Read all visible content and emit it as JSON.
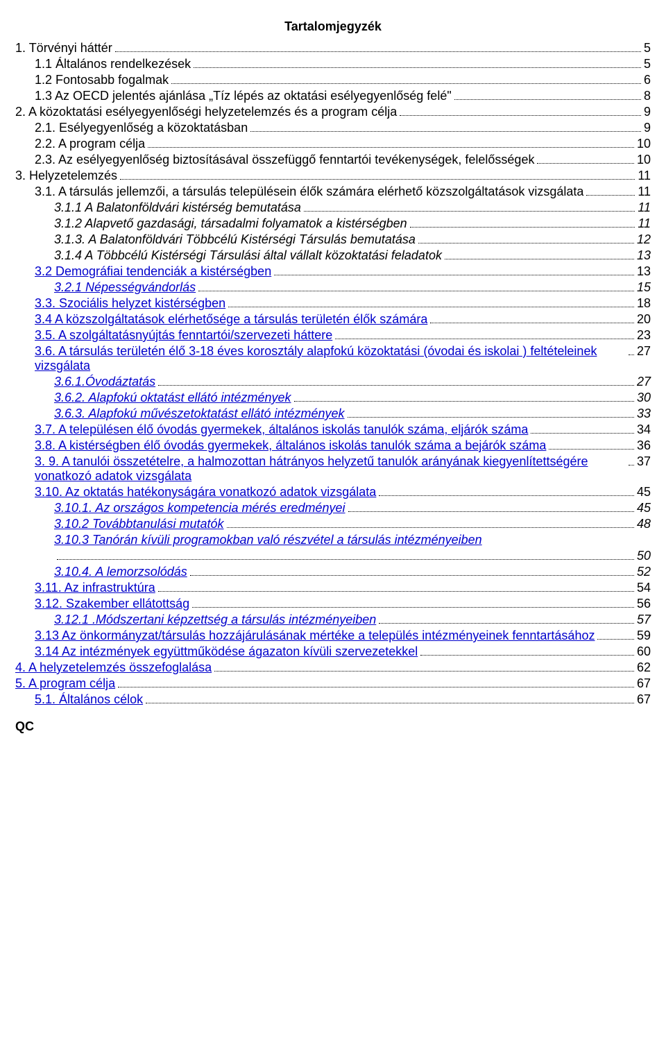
{
  "title": "Tartalomjegyzék",
  "footer": "QC",
  "colors": {
    "link": "#0000cc",
    "text": "#000000",
    "background": "#ffffff",
    "leader": "#000000"
  },
  "typography": {
    "family": "Verdana",
    "size_pt": 14,
    "title_weight": "bold"
  },
  "entries": [
    {
      "text": "1. Törvényi háttér",
      "page": "5",
      "indent": 0,
      "link": false,
      "italic": false
    },
    {
      "text": "1.1 Általános rendelkezések",
      "page": "5",
      "indent": 1,
      "link": false,
      "italic": false
    },
    {
      "text": "1.2 Fontosabb fogalmak",
      "page": "6",
      "indent": 1,
      "link": false,
      "italic": false
    },
    {
      "text": "1.3 Az OECD jelentés ajánlása „Tíz lépés az oktatási esélyegyenlőség felé\"",
      "page": "8",
      "indent": 1,
      "link": false,
      "italic": false
    },
    {
      "text": "2. A közoktatási esélyegyenlőségi helyzetelemzés és a program célja",
      "page": "9",
      "indent": 0,
      "link": false,
      "italic": false
    },
    {
      "text": "2.1. Esélyegyenlőség a közoktatásban",
      "page": "9",
      "indent": 1,
      "link": false,
      "italic": false
    },
    {
      "text": "2.2. A program célja",
      "page": "10",
      "indent": 1,
      "link": false,
      "italic": false
    },
    {
      "text": "2.3. Az esélyegyenlőség biztosításával összefüggő fenntartói tevékenységek, felelősségek",
      "page": "10",
      "indent": 1,
      "link": false,
      "italic": false
    },
    {
      "text": "3. Helyzetelemzés",
      "page": "11",
      "indent": 0,
      "link": false,
      "italic": false
    },
    {
      "text": "3.1. A társulás jellemzői, a társulás településein élők számára elérhető közszolgáltatások vizsgálata",
      "page": "11",
      "indent": 1,
      "link": false,
      "italic": false
    },
    {
      "text": "3.1.1 A  Balatonföldvári kistérség bemutatása",
      "page": "11",
      "indent": 2,
      "link": false,
      "italic": true
    },
    {
      "text": "3.1.2 Alapvető gazdasági, társadalmi folyamatok a kistérségben",
      "page": "11",
      "indent": 2,
      "link": false,
      "italic": true
    },
    {
      "text": "3.1.3. A  Balatonföldvári Többcélú Kistérségi Társulás bemutatása",
      "page": "12",
      "indent": 2,
      "link": false,
      "italic": true
    },
    {
      "text": "3.1.4 A Többcélú Kistérségi Társulási által vállalt közoktatási feladatok",
      "page": "13",
      "indent": 2,
      "link": false,
      "italic": true
    },
    {
      "text": "3.2 Demográfiai tendenciák a kistérségben",
      "page": "13",
      "indent": 1,
      "link": true,
      "italic": false
    },
    {
      "text": "3.2.1 Népességvándorlás",
      "page": "15",
      "indent": 2,
      "link": true,
      "italic": true
    },
    {
      "text": "3.3. Szociális helyzet kistérségben",
      "page": "18",
      "indent": 1,
      "link": true,
      "italic": false
    },
    {
      "text": "3.4 A közszolgáltatások elérhetősége a társulás területén élők számára",
      "page": "20",
      "indent": 1,
      "link": true,
      "italic": false
    },
    {
      "text": "3.5. A szolgáltatásnyújtás fenntartói/szervezeti háttere",
      "page": "23",
      "indent": 1,
      "link": true,
      "italic": false
    },
    {
      "text": "3.6. A társulás területén élő 3-18 éves korosztály alapfokú közoktatási (óvodai és iskolai ) feltételeinek vizsgálata",
      "page": "27",
      "indent": 1,
      "link": true,
      "italic": false
    },
    {
      "text": "3.6.1.Óvodáztatás",
      "page": "27",
      "indent": 2,
      "link": true,
      "italic": true
    },
    {
      "text": "3.6.2. Alapfokú oktatást ellátó intézmények",
      "page": "30",
      "indent": 2,
      "link": true,
      "italic": true
    },
    {
      "text": "3.6.3. Alapfokú művészetoktatást ellátó intézmények",
      "page": "33",
      "indent": 2,
      "link": true,
      "italic": true
    },
    {
      "text": "3.7. A településen élő óvodás gyermekek, általános iskolás tanulók száma, eljárók száma",
      "page": "34",
      "indent": 1,
      "link": true,
      "italic": false
    },
    {
      "text": "3.8. A kistérségben élő óvodás gyermekek, általános iskolás tanulók száma a bejárók száma",
      "page": "36",
      "indent": 1,
      "link": true,
      "italic": false
    },
    {
      "text": "3. 9. A tanulói összetételre, a halmozottan hátrányos helyzetű tanulók arányának kiegyenlítettségére vonatkozó adatok vizsgálata",
      "page": "37",
      "indent": 1,
      "link": true,
      "italic": false
    },
    {
      "text": "3.10. Az oktatás hatékonyságára vonatkozó adatok vizsgálata",
      "page": "45",
      "indent": 1,
      "link": true,
      "italic": false
    },
    {
      "text": "3.10.1. Az országos kompetencia mérés eredményei",
      "page": "45",
      "indent": 2,
      "link": true,
      "italic": true
    },
    {
      "text": "3.10.2 Továbbtanulási mutatók",
      "page": "48",
      "indent": 2,
      "link": true,
      "italic": true
    },
    {
      "text": "3.10.3 Tanórán kívüli programokban való részvétel a társulás intézményeiben",
      "page": "50",
      "indent": 2,
      "link": true,
      "italic": true,
      "cont": true
    },
    {
      "text": "3.10.4. A lemorzsolódás",
      "page": "52",
      "indent": 2,
      "link": true,
      "italic": true
    },
    {
      "text": "3.11. Az infrastruktúra",
      "page": "54",
      "indent": 1,
      "link": true,
      "italic": false
    },
    {
      "text": "3.12. Szakember ellátottság",
      "page": "56",
      "indent": 1,
      "link": true,
      "italic": false
    },
    {
      "text": "3.12.1 .Módszertani képzettség a társulás intézményeiben",
      "page": "57",
      "indent": 2,
      "link": true,
      "italic": true
    },
    {
      "text": "3.13 Az önkormányzat/társulás hozzájárulásának mértéke a település intézményeinek fenntartásához",
      "page": "59",
      "indent": 1,
      "link": true,
      "italic": false
    },
    {
      "text": "3.14 Az intézmények együttműködése ágazaton kívüli szervezetekkel",
      "page": "60",
      "indent": 1,
      "link": true,
      "italic": false
    },
    {
      "text": "4.  A helyzetelemzés összefoglalása",
      "page": "62",
      "indent": 0,
      "link": true,
      "italic": false
    },
    {
      "text": "5. A program célja",
      "page": "67",
      "indent": 0,
      "link": true,
      "italic": false
    },
    {
      "text": "5.1. Általános célok",
      "page": "67",
      "indent": 1,
      "link": true,
      "italic": false
    }
  ]
}
